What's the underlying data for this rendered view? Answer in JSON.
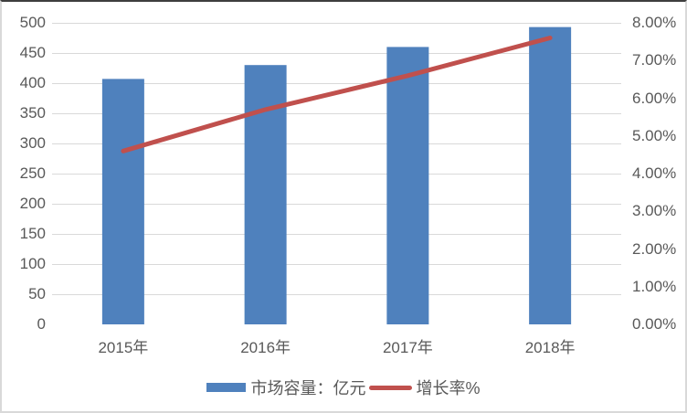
{
  "chart_data": {
    "type": "bar",
    "combo": "bar+line",
    "title": "",
    "categories": [
      "2015年",
      "2016年",
      "2017年",
      "2018年"
    ],
    "series": [
      {
        "name": "市场容量：亿元",
        "type": "bar",
        "axis": "left",
        "values": [
          407,
          430,
          460,
          493
        ],
        "color": "#4f81bd"
      },
      {
        "name": "增长率%",
        "type": "line",
        "axis": "right",
        "values": [
          4.6,
          5.7,
          6.6,
          7.6
        ],
        "color": "#c0504d"
      }
    ],
    "left_axis": {
      "min": 0,
      "max": 500,
      "tick_labels": [
        "500",
        "450",
        "400",
        "350",
        "300",
        "250",
        "200",
        "150",
        "100",
        "50",
        "0"
      ]
    },
    "right_axis": {
      "min": 0,
      "max": 8,
      "tick_labels": [
        "8.00%",
        "7.00%",
        "6.00%",
        "5.00%",
        "4.00%",
        "3.00%",
        "2.00%",
        "1.00%",
        "0.00%"
      ]
    },
    "grid": true,
    "legend_position": "bottom"
  },
  "colors": {
    "grid": "#d9d9d9",
    "baseline": "#bfbfbf",
    "axis_text": "#595959",
    "bar": "#4f81bd",
    "line": "#c0504d"
  }
}
